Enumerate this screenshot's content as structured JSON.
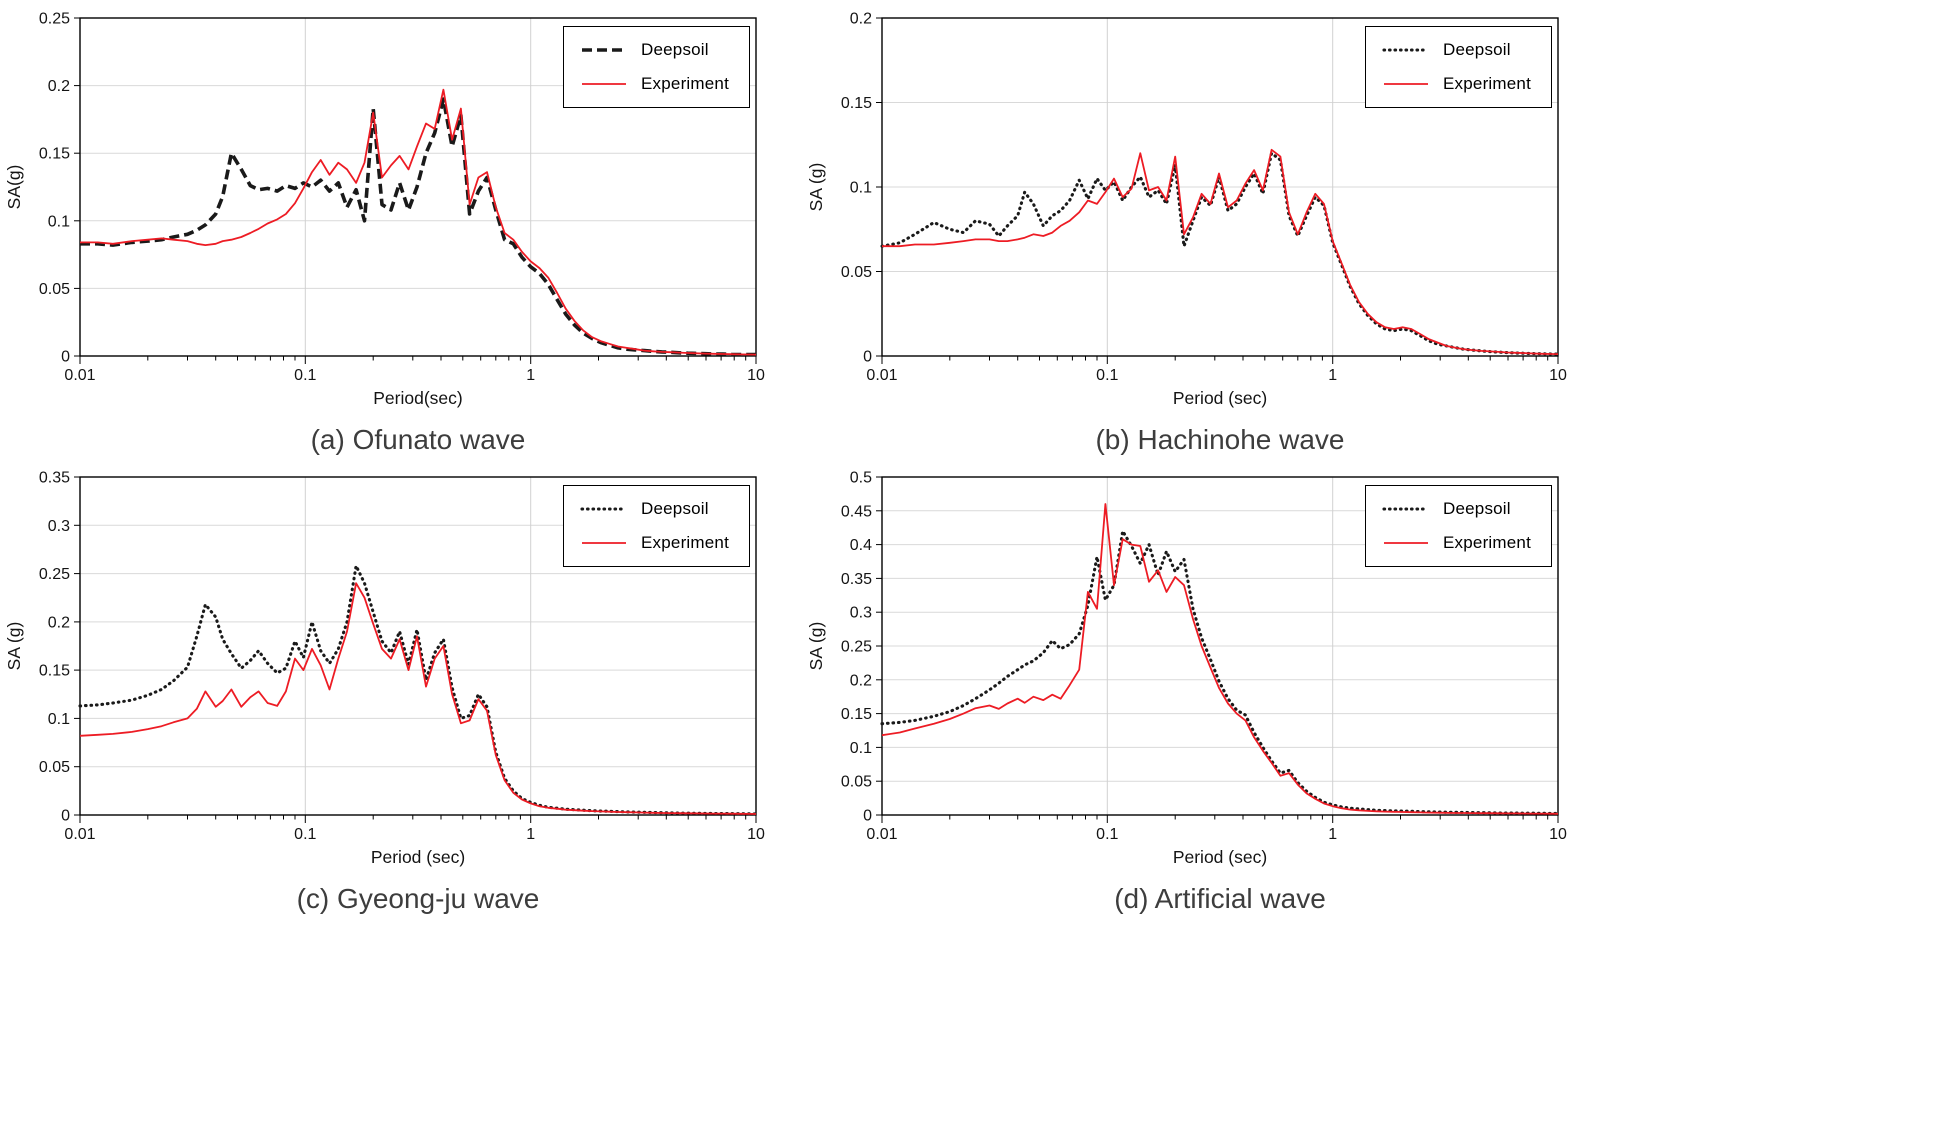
{
  "page": {
    "background": "#ffffff"
  },
  "chart_data": [
    {
      "id": "a",
      "type": "line",
      "caption": "(a) Ofunato wave",
      "xlabel": "Period(sec)",
      "ylabel": "SA(g)",
      "xscale": "log",
      "xlim": [
        0.01,
        10
      ],
      "ylim": [
        0,
        0.25
      ],
      "ytick_step": 0.05,
      "xticks": [
        0.01,
        0.1,
        1,
        10
      ],
      "grid": true,
      "legend_position": "top-right",
      "x": [
        0.01,
        0.012,
        0.014,
        0.017,
        0.02,
        0.023,
        0.026,
        0.03,
        0.033,
        0.036,
        0.04,
        0.043,
        0.047,
        0.052,
        0.057,
        0.062,
        0.068,
        0.075,
        0.082,
        0.09,
        0.098,
        0.107,
        0.117,
        0.128,
        0.14,
        0.153,
        0.168,
        0.183,
        0.2,
        0.219,
        0.24,
        0.262,
        0.287,
        0.313,
        0.343,
        0.375,
        0.41,
        0.448,
        0.49,
        0.536,
        0.586,
        0.64,
        0.7,
        0.766,
        0.837,
        0.915,
        1.0,
        1.094,
        1.196,
        1.308,
        1.43,
        1.563,
        1.709,
        1.869,
        2.043,
        2.234,
        2.443,
        2.671,
        2.92,
        3.193,
        3.491,
        3.817,
        4.174,
        4.563,
        4.99,
        5.456,
        5.965,
        6.522,
        7.131,
        7.797,
        8.525,
        9.321,
        10.0
      ],
      "series": [
        {
          "name": "Deepsoil",
          "style": "dashed",
          "color": "#1a1a1a",
          "values": [
            0.083,
            0.083,
            0.082,
            0.084,
            0.085,
            0.086,
            0.088,
            0.09,
            0.093,
            0.097,
            0.105,
            0.118,
            0.15,
            0.138,
            0.126,
            0.123,
            0.124,
            0.122,
            0.126,
            0.124,
            0.128,
            0.125,
            0.13,
            0.122,
            0.128,
            0.11,
            0.123,
            0.1,
            0.183,
            0.112,
            0.108,
            0.128,
            0.108,
            0.125,
            0.15,
            0.165,
            0.19,
            0.155,
            0.178,
            0.105,
            0.122,
            0.132,
            0.108,
            0.086,
            0.083,
            0.073,
            0.066,
            0.061,
            0.053,
            0.042,
            0.031,
            0.023,
            0.017,
            0.013,
            0.01,
            0.008,
            0.006,
            0.005,
            0.0045,
            0.004,
            0.0035,
            0.003,
            0.0027,
            0.0024,
            0.0021,
            0.0019,
            0.0017,
            0.0015,
            0.0014,
            0.0012,
            0.0011,
            0.001,
            0.001
          ]
        },
        {
          "name": "Experiment",
          "style": "solid",
          "color": "#ed1c24",
          "values": [
            0.084,
            0.084,
            0.083,
            0.085,
            0.086,
            0.087,
            0.086,
            0.085,
            0.083,
            0.082,
            0.083,
            0.085,
            0.086,
            0.088,
            0.091,
            0.094,
            0.098,
            0.101,
            0.105,
            0.113,
            0.124,
            0.136,
            0.145,
            0.134,
            0.143,
            0.138,
            0.128,
            0.143,
            0.18,
            0.132,
            0.141,
            0.148,
            0.138,
            0.155,
            0.172,
            0.168,
            0.197,
            0.16,
            0.183,
            0.112,
            0.132,
            0.136,
            0.11,
            0.091,
            0.086,
            0.077,
            0.07,
            0.065,
            0.058,
            0.047,
            0.035,
            0.026,
            0.019,
            0.014,
            0.011,
            0.009,
            0.007,
            0.006,
            0.005,
            0.004,
            0.0035,
            0.003,
            0.0028,
            0.0025,
            0.0022,
            0.002,
            0.0018,
            0.0016,
            0.0015,
            0.0013,
            0.0012,
            0.0011,
            0.001
          ]
        }
      ]
    },
    {
      "id": "b",
      "type": "line",
      "caption": "(b) Hachinohe wave",
      "xlabel": "Period (sec)",
      "ylabel": "SA (g)",
      "xscale": "log",
      "xlim": [
        0.01,
        10
      ],
      "ylim": [
        0,
        0.2
      ],
      "ytick_step": 0.05,
      "xticks": [
        0.01,
        0.1,
        1,
        10
      ],
      "grid": true,
      "legend_position": "top-right",
      "x": [
        0.01,
        0.012,
        0.014,
        0.017,
        0.02,
        0.023,
        0.026,
        0.03,
        0.033,
        0.036,
        0.04,
        0.043,
        0.047,
        0.052,
        0.057,
        0.062,
        0.068,
        0.075,
        0.082,
        0.09,
        0.098,
        0.107,
        0.117,
        0.128,
        0.14,
        0.153,
        0.168,
        0.183,
        0.2,
        0.219,
        0.24,
        0.262,
        0.287,
        0.313,
        0.343,
        0.375,
        0.41,
        0.448,
        0.49,
        0.536,
        0.586,
        0.64,
        0.7,
        0.766,
        0.837,
        0.915,
        1.0,
        1.094,
        1.196,
        1.308,
        1.43,
        1.563,
        1.709,
        1.869,
        2.043,
        2.234,
        2.443,
        2.671,
        2.92,
        3.193,
        3.491,
        3.817,
        4.174,
        4.563,
        4.99,
        5.456,
        5.965,
        6.522,
        7.131,
        7.797,
        8.525,
        9.321,
        10.0
      ],
      "series": [
        {
          "name": "Deepsoil",
          "style": "dotted",
          "color": "#1a1a1a",
          "values": [
            0.065,
            0.067,
            0.072,
            0.079,
            0.075,
            0.073,
            0.08,
            0.078,
            0.071,
            0.077,
            0.083,
            0.097,
            0.09,
            0.077,
            0.083,
            0.086,
            0.092,
            0.104,
            0.093,
            0.105,
            0.098,
            0.103,
            0.092,
            0.1,
            0.106,
            0.094,
            0.098,
            0.09,
            0.113,
            0.065,
            0.08,
            0.094,
            0.089,
            0.106,
            0.086,
            0.09,
            0.1,
            0.108,
            0.096,
            0.12,
            0.116,
            0.083,
            0.071,
            0.083,
            0.094,
            0.089,
            0.067,
            0.054,
            0.041,
            0.031,
            0.024,
            0.019,
            0.016,
            0.015,
            0.016,
            0.015,
            0.012,
            0.009,
            0.007,
            0.006,
            0.005,
            0.004,
            0.0035,
            0.003,
            0.0026,
            0.0023,
            0.002,
            0.0018,
            0.0016,
            0.0014,
            0.0013,
            0.0012,
            0.0011
          ]
        },
        {
          "name": "Experiment",
          "style": "solid",
          "color": "#ed1c24",
          "values": [
            0.065,
            0.065,
            0.066,
            0.066,
            0.067,
            0.068,
            0.069,
            0.069,
            0.068,
            0.068,
            0.069,
            0.07,
            0.072,
            0.071,
            0.073,
            0.077,
            0.08,
            0.085,
            0.092,
            0.09,
            0.097,
            0.105,
            0.094,
            0.099,
            0.12,
            0.098,
            0.1,
            0.092,
            0.118,
            0.072,
            0.082,
            0.096,
            0.09,
            0.108,
            0.088,
            0.092,
            0.102,
            0.11,
            0.098,
            0.122,
            0.118,
            0.085,
            0.072,
            0.085,
            0.096,
            0.09,
            0.068,
            0.055,
            0.042,
            0.032,
            0.025,
            0.02,
            0.017,
            0.016,
            0.017,
            0.016,
            0.013,
            0.01,
            0.008,
            0.006,
            0.005,
            0.004,
            0.0035,
            0.003,
            0.0027,
            0.0024,
            0.0021,
            0.0019,
            0.0017,
            0.0015,
            0.0013,
            0.0012,
            0.0011
          ]
        }
      ]
    },
    {
      "id": "c",
      "type": "line",
      "caption": "(c) Gyeong-ju wave",
      "xlabel": "Period (sec)",
      "ylabel": "SA (g)",
      "xscale": "log",
      "xlim": [
        0.01,
        10
      ],
      "ylim": [
        0,
        0.35
      ],
      "ytick_step": 0.05,
      "xticks": [
        0.01,
        0.1,
        1,
        10
      ],
      "grid": true,
      "legend_position": "top-right",
      "x": [
        0.01,
        0.012,
        0.014,
        0.017,
        0.02,
        0.023,
        0.026,
        0.03,
        0.033,
        0.036,
        0.04,
        0.043,
        0.047,
        0.052,
        0.057,
        0.062,
        0.068,
        0.075,
        0.082,
        0.09,
        0.098,
        0.107,
        0.117,
        0.128,
        0.14,
        0.153,
        0.168,
        0.183,
        0.2,
        0.219,
        0.24,
        0.262,
        0.287,
        0.313,
        0.343,
        0.375,
        0.41,
        0.448,
        0.49,
        0.536,
        0.586,
        0.64,
        0.7,
        0.766,
        0.837,
        0.915,
        1.0,
        1.094,
        1.196,
        1.308,
        1.43,
        1.563,
        1.709,
        1.869,
        2.043,
        2.234,
        2.443,
        2.671,
        2.92,
        3.193,
        3.491,
        3.817,
        4.174,
        4.563,
        4.99,
        5.456,
        5.965,
        6.522,
        7.131,
        7.797,
        8.525,
        9.321,
        10.0
      ],
      "series": [
        {
          "name": "Deepsoil",
          "style": "dotted",
          "color": "#1a1a1a",
          "values": [
            0.113,
            0.114,
            0.116,
            0.119,
            0.124,
            0.13,
            0.139,
            0.153,
            0.185,
            0.218,
            0.205,
            0.182,
            0.167,
            0.152,
            0.16,
            0.17,
            0.157,
            0.147,
            0.152,
            0.18,
            0.163,
            0.2,
            0.17,
            0.157,
            0.172,
            0.2,
            0.258,
            0.24,
            0.21,
            0.18,
            0.168,
            0.19,
            0.156,
            0.192,
            0.14,
            0.168,
            0.182,
            0.132,
            0.1,
            0.103,
            0.125,
            0.112,
            0.065,
            0.038,
            0.025,
            0.017,
            0.013,
            0.01,
            0.008,
            0.007,
            0.006,
            0.0055,
            0.005,
            0.0045,
            0.004,
            0.0038,
            0.0035,
            0.0032,
            0.003,
            0.0028,
            0.0026,
            0.0024,
            0.0022,
            0.002,
            0.0019,
            0.0018,
            0.0017,
            0.0016,
            0.0015,
            0.0014,
            0.0013,
            0.0012,
            0.0011
          ]
        },
        {
          "name": "Experiment",
          "style": "solid",
          "color": "#ed1c24",
          "values": [
            0.082,
            0.083,
            0.084,
            0.086,
            0.089,
            0.092,
            0.096,
            0.1,
            0.11,
            0.128,
            0.112,
            0.118,
            0.13,
            0.112,
            0.122,
            0.128,
            0.116,
            0.113,
            0.128,
            0.162,
            0.15,
            0.172,
            0.155,
            0.13,
            0.162,
            0.19,
            0.24,
            0.225,
            0.198,
            0.172,
            0.162,
            0.182,
            0.15,
            0.185,
            0.133,
            0.162,
            0.175,
            0.125,
            0.095,
            0.098,
            0.12,
            0.108,
            0.062,
            0.036,
            0.023,
            0.016,
            0.012,
            0.009,
            0.0075,
            0.0065,
            0.0055,
            0.005,
            0.0045,
            0.004,
            0.0037,
            0.0034,
            0.0031,
            0.0029,
            0.0027,
            0.0025,
            0.0023,
            0.0021,
            0.002,
            0.0019,
            0.0018,
            0.0017,
            0.0016,
            0.0015,
            0.0014,
            0.0013,
            0.0012,
            0.0011,
            0.001
          ]
        }
      ]
    },
    {
      "id": "d",
      "type": "line",
      "caption": "(d) Artificial wave",
      "xlabel": "Period (sec)",
      "ylabel": "SA (g)",
      "xscale": "log",
      "xlim": [
        0.01,
        10
      ],
      "ylim": [
        0,
        0.5
      ],
      "ytick_step": 0.05,
      "xticks": [
        0.01,
        0.1,
        1,
        10
      ],
      "grid": true,
      "legend_position": "top-right",
      "x": [
        0.01,
        0.012,
        0.014,
        0.017,
        0.02,
        0.023,
        0.026,
        0.03,
        0.033,
        0.036,
        0.04,
        0.043,
        0.047,
        0.052,
        0.057,
        0.062,
        0.068,
        0.075,
        0.082,
        0.09,
        0.098,
        0.107,
        0.117,
        0.128,
        0.14,
        0.153,
        0.168,
        0.183,
        0.2,
        0.219,
        0.24,
        0.262,
        0.287,
        0.313,
        0.343,
        0.375,
        0.41,
        0.448,
        0.49,
        0.536,
        0.586,
        0.64,
        0.7,
        0.766,
        0.837,
        0.915,
        1.0,
        1.094,
        1.196,
        1.308,
        1.43,
        1.563,
        1.709,
        1.869,
        2.043,
        2.234,
        2.443,
        2.671,
        2.92,
        3.193,
        3.491,
        3.817,
        4.174,
        4.563,
        4.99,
        5.456,
        5.965,
        6.522,
        7.131,
        7.797,
        8.525,
        9.321,
        10.0
      ],
      "series": [
        {
          "name": "Deepsoil",
          "style": "dotted",
          "color": "#1a1a1a",
          "values": [
            0.135,
            0.137,
            0.14,
            0.146,
            0.153,
            0.162,
            0.172,
            0.185,
            0.195,
            0.205,
            0.215,
            0.222,
            0.228,
            0.24,
            0.258,
            0.246,
            0.252,
            0.268,
            0.31,
            0.382,
            0.318,
            0.34,
            0.42,
            0.398,
            0.372,
            0.4,
            0.355,
            0.39,
            0.36,
            0.378,
            0.305,
            0.262,
            0.23,
            0.198,
            0.172,
            0.155,
            0.148,
            0.122,
            0.1,
            0.08,
            0.062,
            0.066,
            0.048,
            0.035,
            0.026,
            0.019,
            0.015,
            0.012,
            0.01,
            0.009,
            0.008,
            0.007,
            0.0065,
            0.006,
            0.0058,
            0.0055,
            0.005,
            0.0048,
            0.0045,
            0.0042,
            0.004,
            0.0038,
            0.0036,
            0.0034,
            0.0032,
            0.003,
            0.0029,
            0.0028,
            0.0027,
            0.0026,
            0.0025,
            0.0024,
            0.0023
          ]
        },
        {
          "name": "Experiment",
          "style": "solid",
          "color": "#ed1c24",
          "values": [
            0.118,
            0.122,
            0.128,
            0.135,
            0.142,
            0.15,
            0.158,
            0.162,
            0.157,
            0.165,
            0.172,
            0.166,
            0.175,
            0.17,
            0.178,
            0.172,
            0.192,
            0.215,
            0.33,
            0.305,
            0.46,
            0.34,
            0.408,
            0.4,
            0.398,
            0.345,
            0.362,
            0.33,
            0.352,
            0.34,
            0.29,
            0.25,
            0.218,
            0.188,
            0.165,
            0.15,
            0.14,
            0.115,
            0.095,
            0.077,
            0.058,
            0.062,
            0.045,
            0.032,
            0.024,
            0.017,
            0.013,
            0.01,
            0.008,
            0.007,
            0.006,
            0.0055,
            0.005,
            0.0047,
            0.0044,
            0.0041,
            0.0038,
            0.0036,
            0.0034,
            0.0032,
            0.003,
            0.0029,
            0.0028,
            0.0027,
            0.0026,
            0.0025,
            0.0024,
            0.0023,
            0.0022,
            0.0021,
            0.002,
            0.0019,
            0.0018
          ]
        }
      ]
    }
  ]
}
